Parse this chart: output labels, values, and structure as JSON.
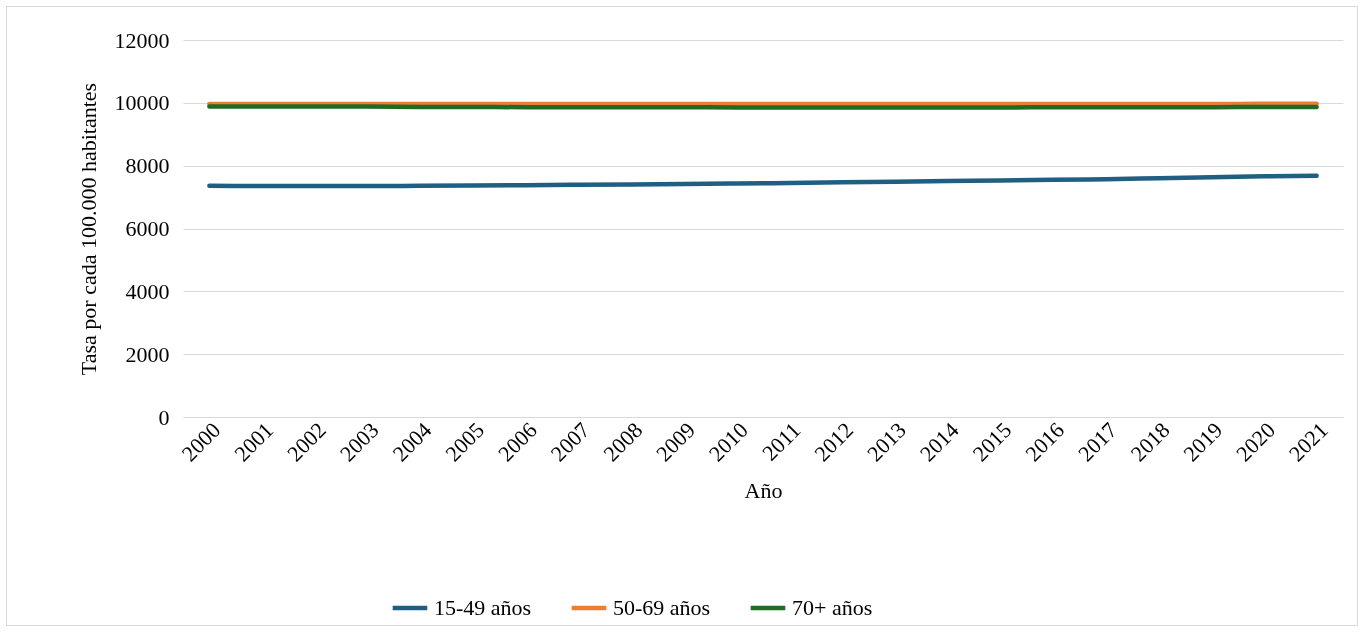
{
  "chart_data": {
    "type": "line",
    "xlabel": "Año",
    "ylabel": "Tasa por cada 100.000 habitantes",
    "categories": [
      "2000",
      "2001",
      "2002",
      "2003",
      "2004",
      "2005",
      "2006",
      "2007",
      "2008",
      "2009",
      "2010",
      "2011",
      "2012",
      "2013",
      "2014",
      "2015",
      "2016",
      "2017",
      "2018",
      "2019",
      "2020",
      "2021"
    ],
    "series": [
      {
        "name": "15-49 años",
        "color": "#1f5f82",
        "values": [
          7360,
          7350,
          7350,
          7350,
          7360,
          7370,
          7380,
          7390,
          7400,
          7420,
          7430,
          7450,
          7470,
          7490,
          7510,
          7530,
          7550,
          7570,
          7600,
          7630,
          7660,
          7680
        ]
      },
      {
        "name": "50-69 años",
        "color": "#ed7d31",
        "values": [
          9960,
          9960,
          9960,
          9960,
          9960,
          9960,
          9960,
          9960,
          9960,
          9960,
          9960,
          9960,
          9960,
          9960,
          9960,
          9960,
          9960,
          9960,
          9960,
          9960,
          9970,
          9970
        ]
      },
      {
        "name": "70+ años",
        "color": "#1e6b24",
        "values": [
          9880,
          9880,
          9880,
          9880,
          9870,
          9870,
          9860,
          9860,
          9860,
          9860,
          9850,
          9850,
          9850,
          9850,
          9850,
          9850,
          9860,
          9860,
          9860,
          9860,
          9870,
          9870
        ]
      }
    ],
    "ylim": [
      0,
      12000
    ],
    "yticks": [
      0,
      2000,
      4000,
      6000,
      8000,
      10000,
      12000
    ],
    "grid": "y",
    "legend": "bottom",
    "marker": "none",
    "line_style": "solid"
  }
}
